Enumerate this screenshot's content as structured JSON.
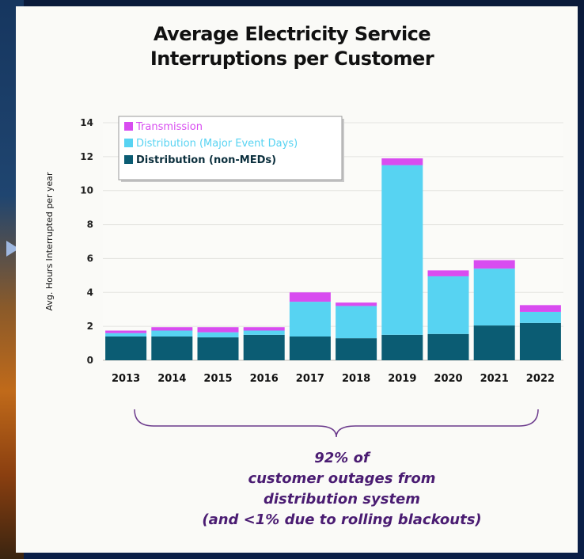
{
  "chart_data": {
    "type": "bar",
    "stacked": true,
    "title_lines": [
      "Average Electricity Service",
      "Interruptions per Customer"
    ],
    "ylabel": "Avg. Hours Interrupted per year",
    "xlabel": "",
    "ylim": [
      0,
      14
    ],
    "yticks": [
      0,
      2,
      4,
      6,
      8,
      10,
      12,
      14
    ],
    "grid": true,
    "legend_position": "top-left",
    "categories": [
      "2013",
      "2014",
      "2015",
      "2016",
      "2017",
      "2018",
      "2019",
      "2020",
      "2021",
      "2022"
    ],
    "series": [
      {
        "name": "Distribution (non-MEDs)",
        "color": "#0b5c73",
        "values": [
          1.4,
          1.4,
          1.35,
          1.5,
          1.4,
          1.3,
          1.5,
          1.55,
          2.05,
          2.2
        ]
      },
      {
        "name": "Distribution (Major Event Days)",
        "color": "#57d3f2",
        "values": [
          0.2,
          0.35,
          0.3,
          0.25,
          2.05,
          1.9,
          10.0,
          3.4,
          3.35,
          0.65
        ]
      },
      {
        "name": "Transmission",
        "color": "#d84cf0",
        "values": [
          0.15,
          0.2,
          0.3,
          0.2,
          0.55,
          0.2,
          0.4,
          0.35,
          0.5,
          0.4
        ]
      }
    ],
    "legend_order": [
      "Transmission",
      "Distribution (Major Event Days)",
      "Distribution (non-MEDs)"
    ],
    "annotation_lines": [
      "92% of",
      "customer outages from",
      "distribution system",
      "(and <1% due to rolling blackouts)"
    ],
    "annotation_color": "#4a1c72",
    "brace_color": "#6b3a8c"
  }
}
